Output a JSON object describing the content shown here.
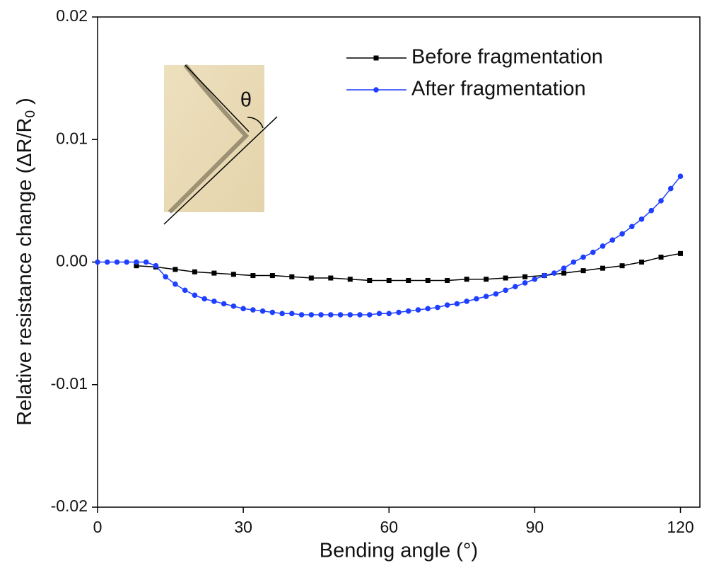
{
  "chart_data": {
    "type": "line",
    "xlabel": "Bending angle (°)",
    "ylabel": {
      "text": "Relative resistance change (ΔR/R",
      "sub": "0",
      "end": " )"
    },
    "xlim": [
      0,
      124
    ],
    "ylim": [
      -0.02,
      0.02
    ],
    "xticks": [
      0,
      30,
      60,
      90,
      120
    ],
    "yticks": [
      -0.02,
      -0.01,
      {
        "value": 0,
        "label": "0.00"
      },
      0.01,
      0.02
    ],
    "legend": "upper right",
    "inset_label": "θ",
    "series": [
      {
        "name": "Before fragmentation",
        "color": "#000000",
        "marker": "square",
        "x": [
          8,
          12,
          16,
          20,
          24,
          28,
          32,
          36,
          40,
          44,
          48,
          52,
          56,
          60,
          64,
          68,
          72,
          76,
          80,
          84,
          88,
          92,
          96,
          100,
          104,
          108,
          112,
          116,
          120
        ],
        "values": [
          -0.0003,
          -0.0004,
          -0.0006,
          -0.0008,
          -0.0009,
          -0.001,
          -0.0011,
          -0.0011,
          -0.0012,
          -0.0013,
          -0.0013,
          -0.0014,
          -0.0015,
          -0.0015,
          -0.0015,
          -0.0015,
          -0.0015,
          -0.0014,
          -0.0014,
          -0.0013,
          -0.0012,
          -0.0011,
          -0.0009,
          -0.0007,
          -0.0005,
          -0.0003,
          0,
          0.0004,
          0.0007
        ]
      },
      {
        "name": "After fragmentation",
        "color": "#1f3fff",
        "marker": "circle",
        "x": [
          0,
          2,
          4,
          6,
          8,
          10,
          12,
          14,
          16,
          18,
          20,
          22,
          24,
          26,
          28,
          30,
          32,
          34,
          36,
          38,
          40,
          42,
          44,
          46,
          48,
          50,
          52,
          54,
          56,
          58,
          60,
          62,
          64,
          66,
          68,
          70,
          72,
          74,
          76,
          78,
          80,
          82,
          84,
          86,
          88,
          90,
          92,
          94,
          96,
          98,
          100,
          102,
          104,
          106,
          108,
          110,
          112,
          114,
          116,
          118,
          120
        ],
        "values": [
          0,
          0,
          0,
          0,
          0,
          0,
          -0.0003,
          -0.0012,
          -0.0018,
          -0.0023,
          -0.0027,
          -0.003,
          -0.0032,
          -0.0034,
          -0.0036,
          -0.0038,
          -0.0039,
          -0.004,
          -0.0041,
          -0.0042,
          -0.0042,
          -0.0043,
          -0.0043,
          -0.0043,
          -0.0043,
          -0.0043,
          -0.0043,
          -0.0043,
          -0.0043,
          -0.0042,
          -0.0042,
          -0.0041,
          -0.004,
          -0.0039,
          -0.0038,
          -0.0037,
          -0.0035,
          -0.0034,
          -0.0032,
          -0.003,
          -0.0028,
          -0.0026,
          -0.0023,
          -0.002,
          -0.0017,
          -0.0014,
          -0.0011,
          -0.0009,
          -0.0005,
          0,
          0.0004,
          0.0008,
          0.0013,
          0.0018,
          0.0023,
          0.0029,
          0.0035,
          0.0042,
          0.005,
          0.006,
          0.007
        ]
      }
    ]
  }
}
